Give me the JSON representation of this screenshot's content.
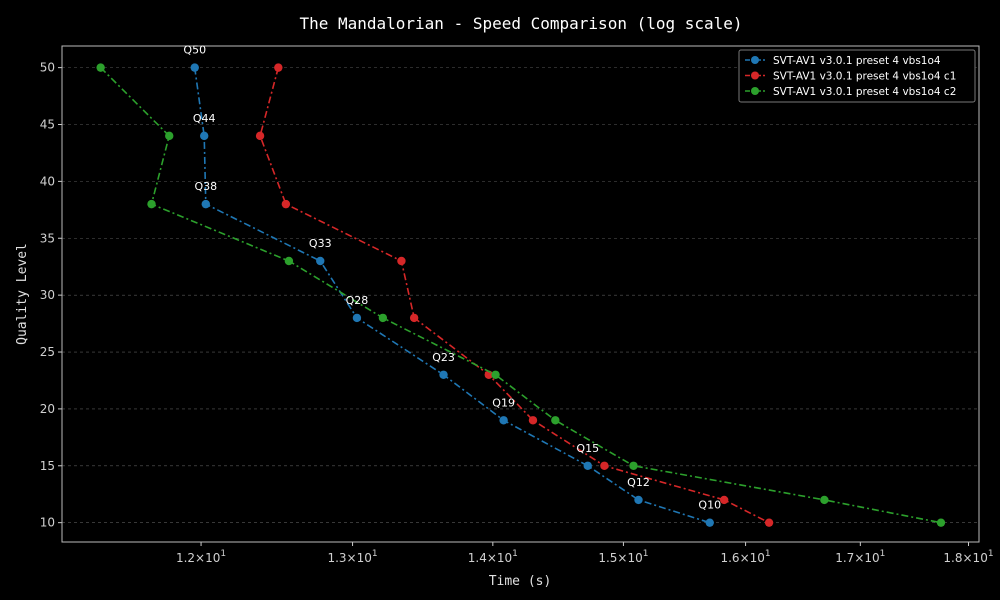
{
  "chart_data": {
    "type": "line",
    "title": "The Mandalorian - Speed Comparison (log scale)",
    "xlabel": "Time (s)",
    "ylabel": "Quality Level",
    "xscale": "log",
    "xlim": [
      11.15,
      18.1
    ],
    "ylim": [
      8.3,
      51.9
    ],
    "grid": "y-dashed",
    "legend": "top-right",
    "x_ticks": [
      {
        "value": 12,
        "base": "1.2",
        "exp": "1"
      },
      {
        "value": 13,
        "base": "1.3",
        "exp": "1"
      },
      {
        "value": 14,
        "base": "1.4",
        "exp": "1"
      },
      {
        "value": 15,
        "base": "1.5",
        "exp": "1"
      },
      {
        "value": 16,
        "base": "1.6",
        "exp": "1"
      },
      {
        "value": 17,
        "base": "1.7",
        "exp": "1"
      },
      {
        "value": 18,
        "base": "1.8",
        "exp": "1"
      }
    ],
    "x_tick_multiplier": "×10",
    "y_ticks": [
      "10",
      "15",
      "20",
      "25",
      "30",
      "35",
      "40",
      "45",
      "50"
    ],
    "point_labels": [
      "Q50",
      "Q44",
      "Q38",
      "Q33",
      "Q28",
      "Q23",
      "Q19",
      "Q15",
      "Q12",
      "Q10"
    ],
    "series": [
      {
        "name": "SVT-AV1 v3.0.1 preset 4 vbs1o4",
        "color": "#1f77b4",
        "points": [
          [
            11.96,
            50
          ],
          [
            12.02,
            44
          ],
          [
            12.03,
            38
          ],
          [
            12.78,
            33
          ],
          [
            13.03,
            28
          ],
          [
            13.64,
            23
          ],
          [
            14.08,
            19
          ],
          [
            14.72,
            15
          ],
          [
            15.12,
            12
          ],
          [
            15.7,
            10
          ]
        ]
      },
      {
        "name": "SVT-AV1 v3.0.1 preset 4 vbs1o4 c1",
        "color": "#d62728",
        "points": [
          [
            12.5,
            50
          ],
          [
            12.38,
            44
          ],
          [
            12.55,
            38
          ],
          [
            13.34,
            33
          ],
          [
            13.43,
            28
          ],
          [
            13.97,
            23
          ],
          [
            14.3,
            19
          ],
          [
            14.85,
            15
          ],
          [
            15.82,
            12
          ],
          [
            16.2,
            10
          ]
        ]
      },
      {
        "name": "SVT-AV1 v3.0.1 preset 4 vbs1o4 c2",
        "color": "#2ca02c",
        "points": [
          [
            11.38,
            50
          ],
          [
            11.8,
            44
          ],
          [
            11.69,
            38
          ],
          [
            12.57,
            33
          ],
          [
            13.21,
            28
          ],
          [
            14.02,
            23
          ],
          [
            14.47,
            19
          ],
          [
            15.08,
            15
          ],
          [
            16.68,
            12
          ],
          [
            17.74,
            10
          ]
        ]
      }
    ]
  }
}
